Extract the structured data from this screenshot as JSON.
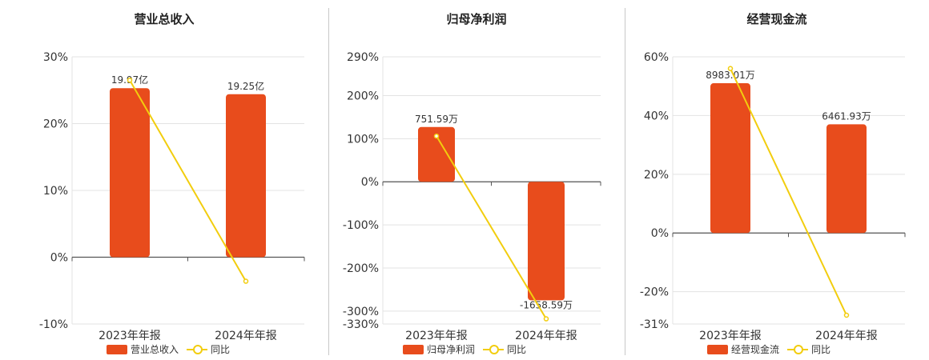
{
  "colors": {
    "bar": "#e84c1c",
    "line": "#f2cd0e",
    "grid": "#e3e3e3",
    "axis": "#555555"
  },
  "chart_data": [
    {
      "type": "bar",
      "title": "营业总收入",
      "categories": [
        "2023年年报",
        "2024年年报"
      ],
      "bar_values_pct": [
        25.3,
        24.4
      ],
      "bar_labels": [
        "19.97亿",
        "19.25亿"
      ],
      "line_values_pct": [
        26.5,
        -3.6
      ],
      "yticks": [
        30,
        20,
        10,
        0,
        -10
      ],
      "ylim": [
        -10,
        30
      ],
      "legend": [
        "营业总收入",
        "同比"
      ]
    },
    {
      "type": "bar",
      "title": "归母净利润",
      "categories": [
        "2023年年报",
        "2024年年报"
      ],
      "bar_values_pct": [
        127,
        -275
      ],
      "bar_labels": [
        "751.59万",
        "-1658.59万"
      ],
      "line_values_pct": [
        106,
        -318
      ],
      "yticks": [
        290,
        200,
        100,
        0,
        -100,
        -200,
        -300,
        -330
      ],
      "ylim": [
        -330,
        290
      ],
      "legend": [
        "归母净利润",
        "同比"
      ]
    },
    {
      "type": "bar",
      "title": "经营现金流",
      "categories": [
        "2023年年报",
        "2024年年报"
      ],
      "bar_values_pct": [
        51,
        37
      ],
      "bar_labels": [
        "8983.01万",
        "6461.93万"
      ],
      "line_values_pct": [
        56,
        -28
      ],
      "yticks": [
        60,
        40,
        20,
        0,
        -20,
        -31
      ],
      "ylim": [
        -31,
        60
      ],
      "legend": [
        "经营现金流",
        "同比"
      ]
    }
  ]
}
